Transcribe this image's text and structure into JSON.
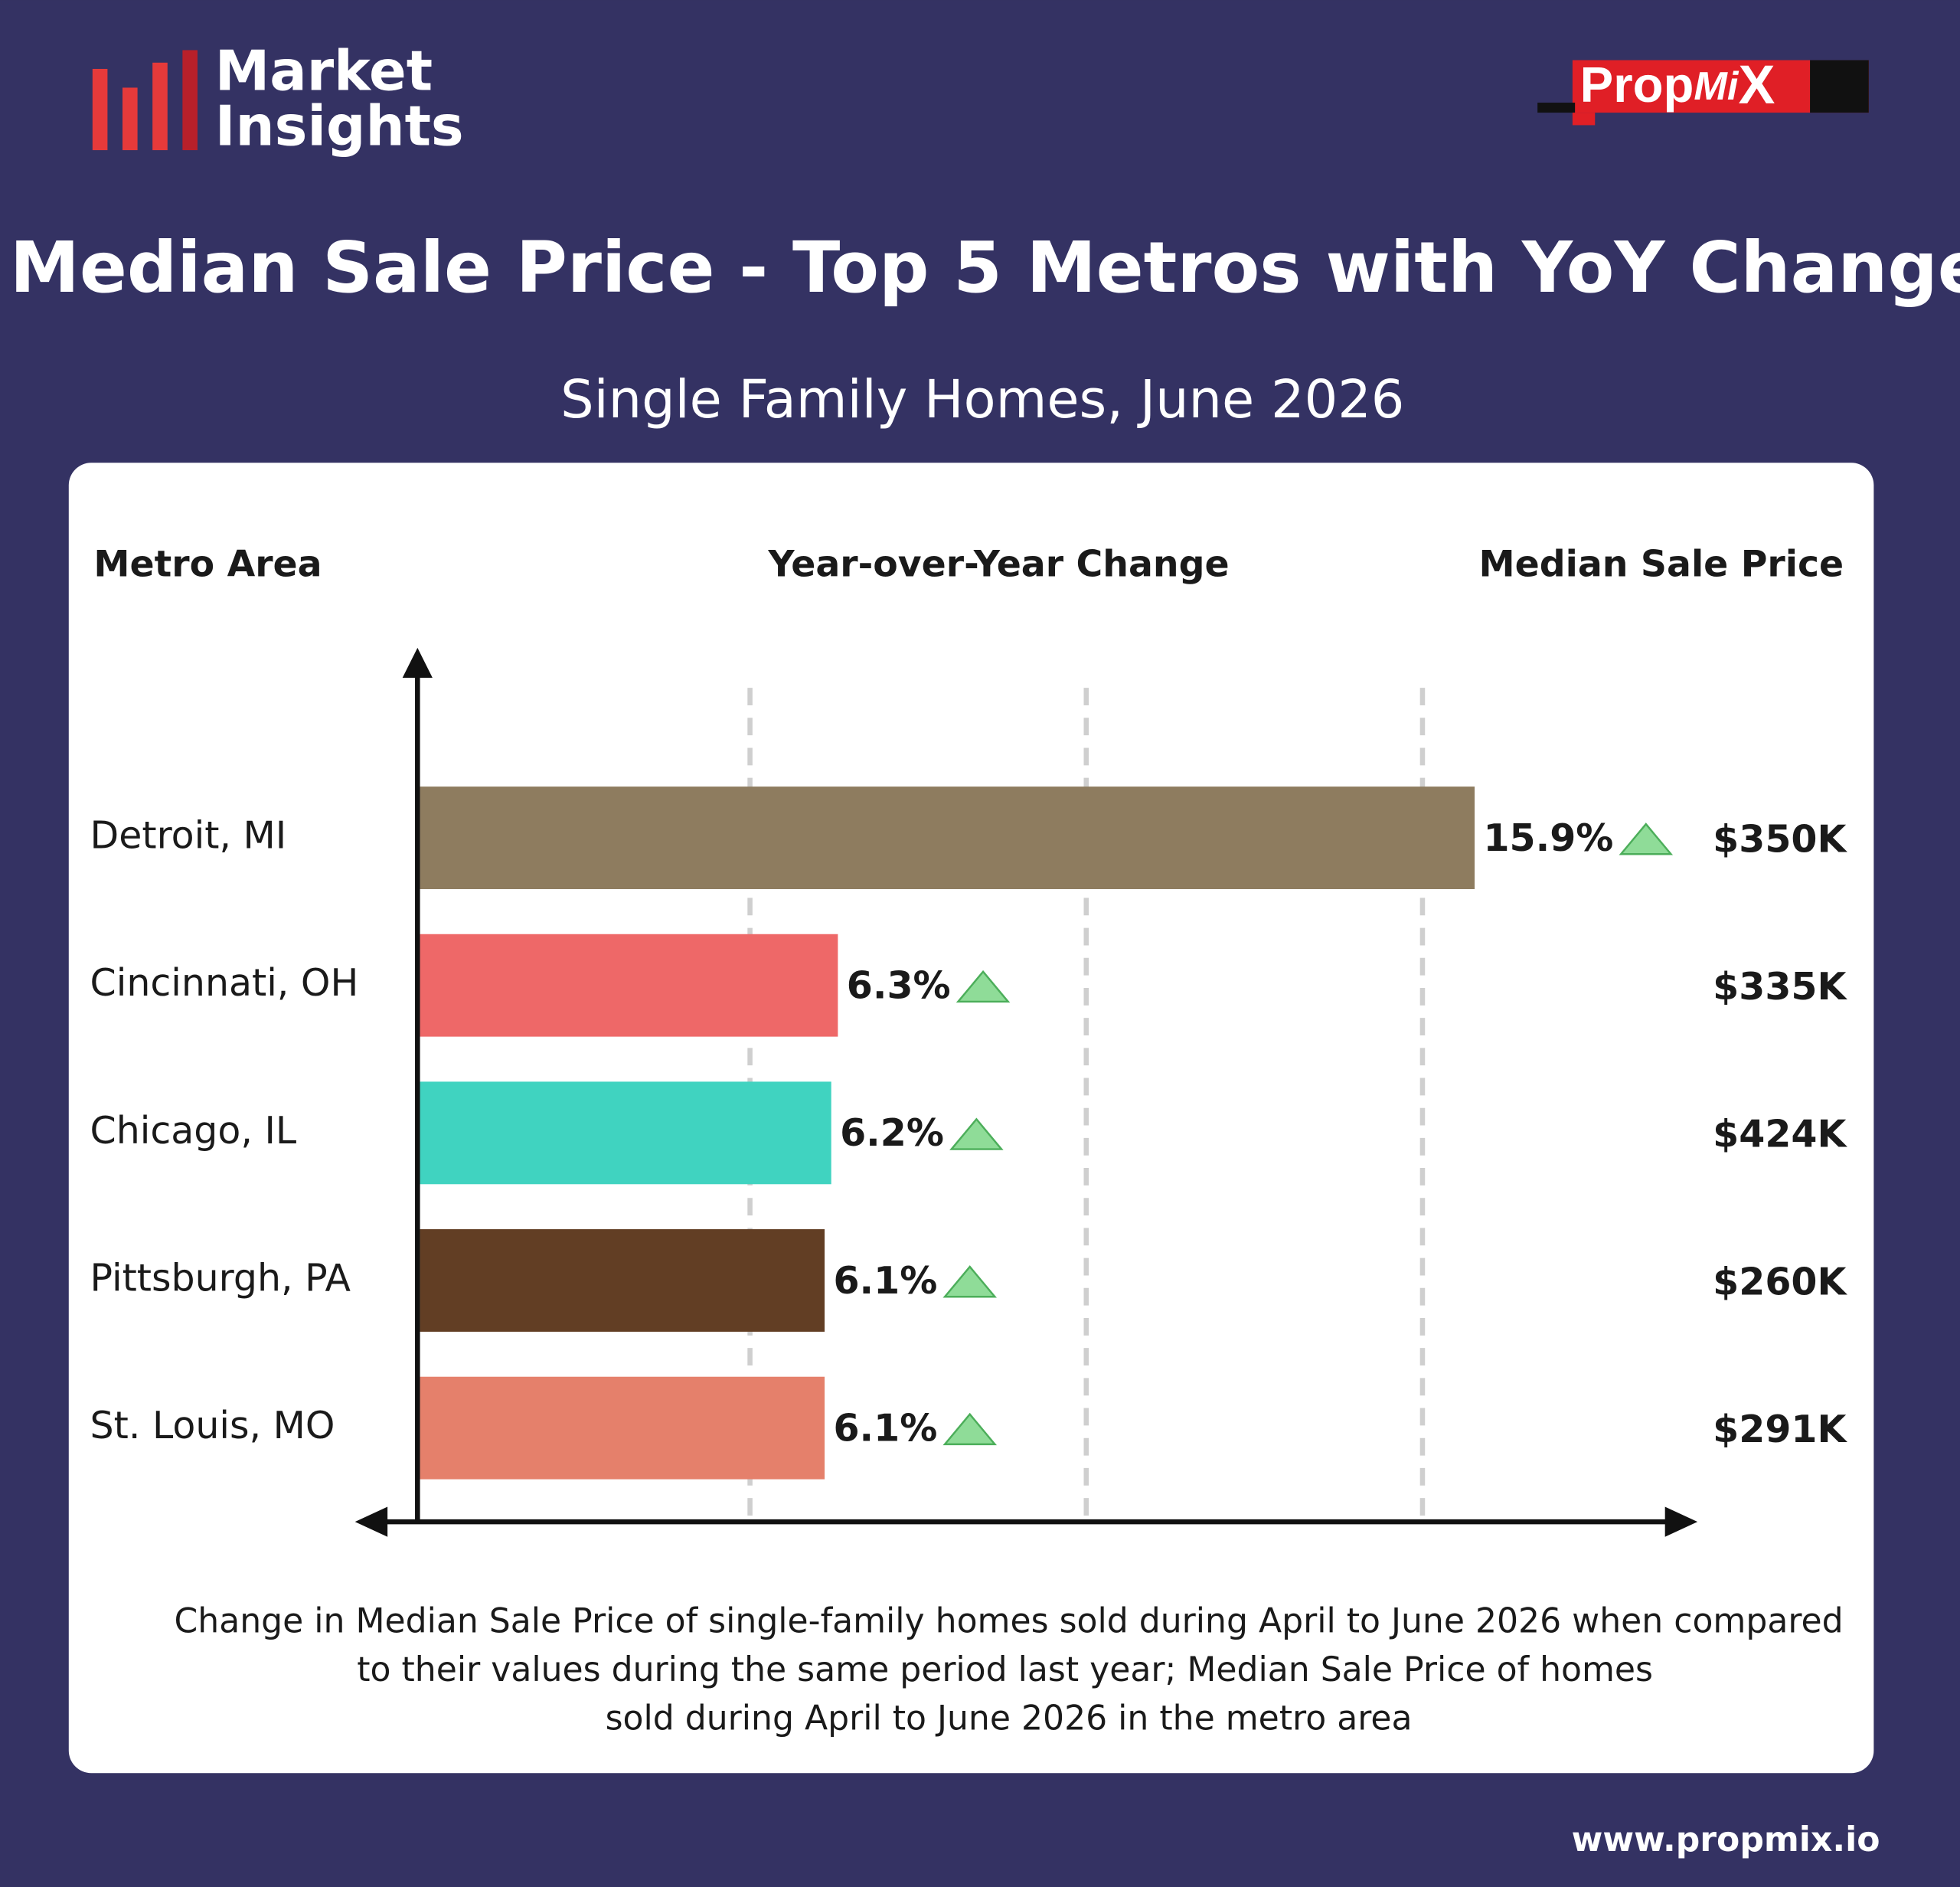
{
  "header": {
    "brand": [
      "Market",
      "Insights"
    ],
    "logo": [
      "Prop",
      "Mi",
      "X"
    ]
  },
  "chart_data": {
    "type": "bar",
    "orientation": "horizontal",
    "title": "Median Sale Price - Top 5 Metros with YoY Change",
    "subtitle": "Single Family Homes, June 2026",
    "category_header": "Metro Area",
    "value_header": "Year-over-Year Change",
    "categories": [
      "Detroit, MI",
      "Cincinnati, OH",
      "Chicago, IL",
      "Pittsburgh, PA",
      "St. Louis, MO"
    ],
    "values": [
      15.9,
      6.3,
      6.2,
      6.1,
      6.1
    ],
    "value_labels": [
      "15.9%",
      "6.3%",
      "6.2%",
      "6.1%",
      "6.1%"
    ],
    "colors": [
      "#8e7c5f",
      "#ee6868",
      "#40d3c0",
      "#623e24",
      "#e5806b"
    ],
    "xlim": [
      0,
      16
    ],
    "price_column": {
      "header": "Median Sale Price",
      "values": [
        "$350K",
        "$335K",
        "$424K",
        "$260K",
        "$291K"
      ]
    },
    "footnote": [
      "Change in Median Sale Price of single-family homes sold during April to June 2026 when compared",
      "to their values during the same period last year; Median Sale Price of homes",
      "sold during April to June 2026 in the metro area"
    ]
  },
  "footer": {
    "website": "www.propmix.io"
  }
}
